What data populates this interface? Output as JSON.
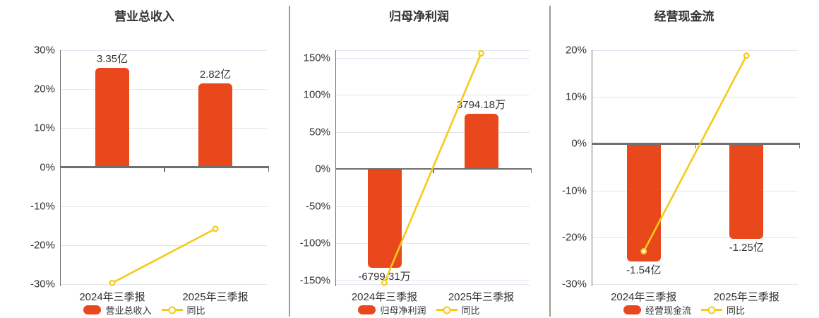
{
  "page": {
    "background": "#ffffff",
    "text_color": "#333333",
    "divider_color": "#9c9c94",
    "grid_color": "#e3e6f0",
    "axis_color": "#6f6f6f"
  },
  "chart_data": [
    {
      "type": "bar",
      "combo": "bar+line",
      "title": "营业总收入",
      "categories": [
        "2024年三季报",
        "2025年三季报"
      ],
      "bar_series": {
        "name": "营业总收入",
        "color": "#e8481c",
        "value_labels": [
          "3.35亿",
          "2.82亿"
        ],
        "values": [
          3.35,
          2.82
        ],
        "unit": "亿",
        "plotted_extent_on_axis_pct": [
          25.5,
          21.5
        ]
      },
      "line_series": {
        "name": "同比",
        "color": "#f6ca17",
        "values_pct": [
          -29.7,
          -15.82
        ]
      },
      "y_axis": {
        "min": -30,
        "max": 30,
        "tick_values": [
          30,
          20,
          10,
          0,
          -10,
          -20,
          -30
        ],
        "tick_labels": [
          "30%",
          "20%",
          "10%",
          "0%",
          "-10%",
          "-20%",
          "-30%"
        ],
        "boundary_gridlines": false
      },
      "grid": true,
      "legend_position": "bottom",
      "legend": [
        {
          "label": "营业总收入",
          "marker": "bar-swatch"
        },
        {
          "label": "同比",
          "marker": "line-circle"
        }
      ]
    },
    {
      "type": "bar",
      "combo": "bar+line",
      "title": "归母净利润",
      "categories": [
        "2024年三季报",
        "2025年三季报"
      ],
      "bar_series": {
        "name": "归母净利润",
        "color": "#e8481c",
        "value_labels": [
          "-6799.31万",
          "3794.18万"
        ],
        "values": [
          -6799.31,
          3794.18
        ],
        "unit": "万",
        "plotted_extent_on_axis_pct": [
          -133,
          74.2
        ]
      },
      "line_series": {
        "name": "同比",
        "color": "#f6ca17",
        "values_pct": [
          -153,
          155.8
        ]
      },
      "y_axis": {
        "min": -155,
        "max": 160,
        "tick_values": [
          150,
          100,
          50,
          0,
          -50,
          -100,
          -150
        ],
        "tick_labels": [
          "150%",
          "100%",
          "50%",
          "0%",
          "-50%",
          "-100%",
          "-150%"
        ],
        "boundary_gridlines": true
      },
      "grid": true,
      "legend_position": "bottom",
      "legend": [
        {
          "label": "归母净利润",
          "marker": "bar-swatch"
        },
        {
          "label": "同比",
          "marker": "line-circle"
        }
      ]
    },
    {
      "type": "bar",
      "combo": "bar+line",
      "title": "经营现金流",
      "categories": [
        "2024年三季报",
        "2025年三季报"
      ],
      "bar_series": {
        "name": "经营现金流",
        "color": "#e8481c",
        "value_labels": [
          "-1.54亿",
          "-1.25亿"
        ],
        "values": [
          -1.54,
          -1.25
        ],
        "unit": "亿",
        "plotted_extent_on_axis_pct": [
          -25.2,
          -20.4
        ]
      },
      "line_series": {
        "name": "同比",
        "color": "#f6ca17",
        "values_pct": [
          -23,
          18.83
        ]
      },
      "y_axis": {
        "min": -30,
        "max": 20,
        "tick_values": [
          20,
          10,
          0,
          -10,
          -20,
          -30
        ],
        "tick_labels": [
          "20%",
          "10%",
          "0%",
          "-10%",
          "-20%",
          "-30%"
        ],
        "boundary_gridlines": false
      },
      "grid": true,
      "legend_position": "bottom",
      "legend": [
        {
          "label": "经营现金流",
          "marker": "bar-swatch"
        },
        {
          "label": "同比",
          "marker": "line-circle"
        }
      ]
    }
  ]
}
